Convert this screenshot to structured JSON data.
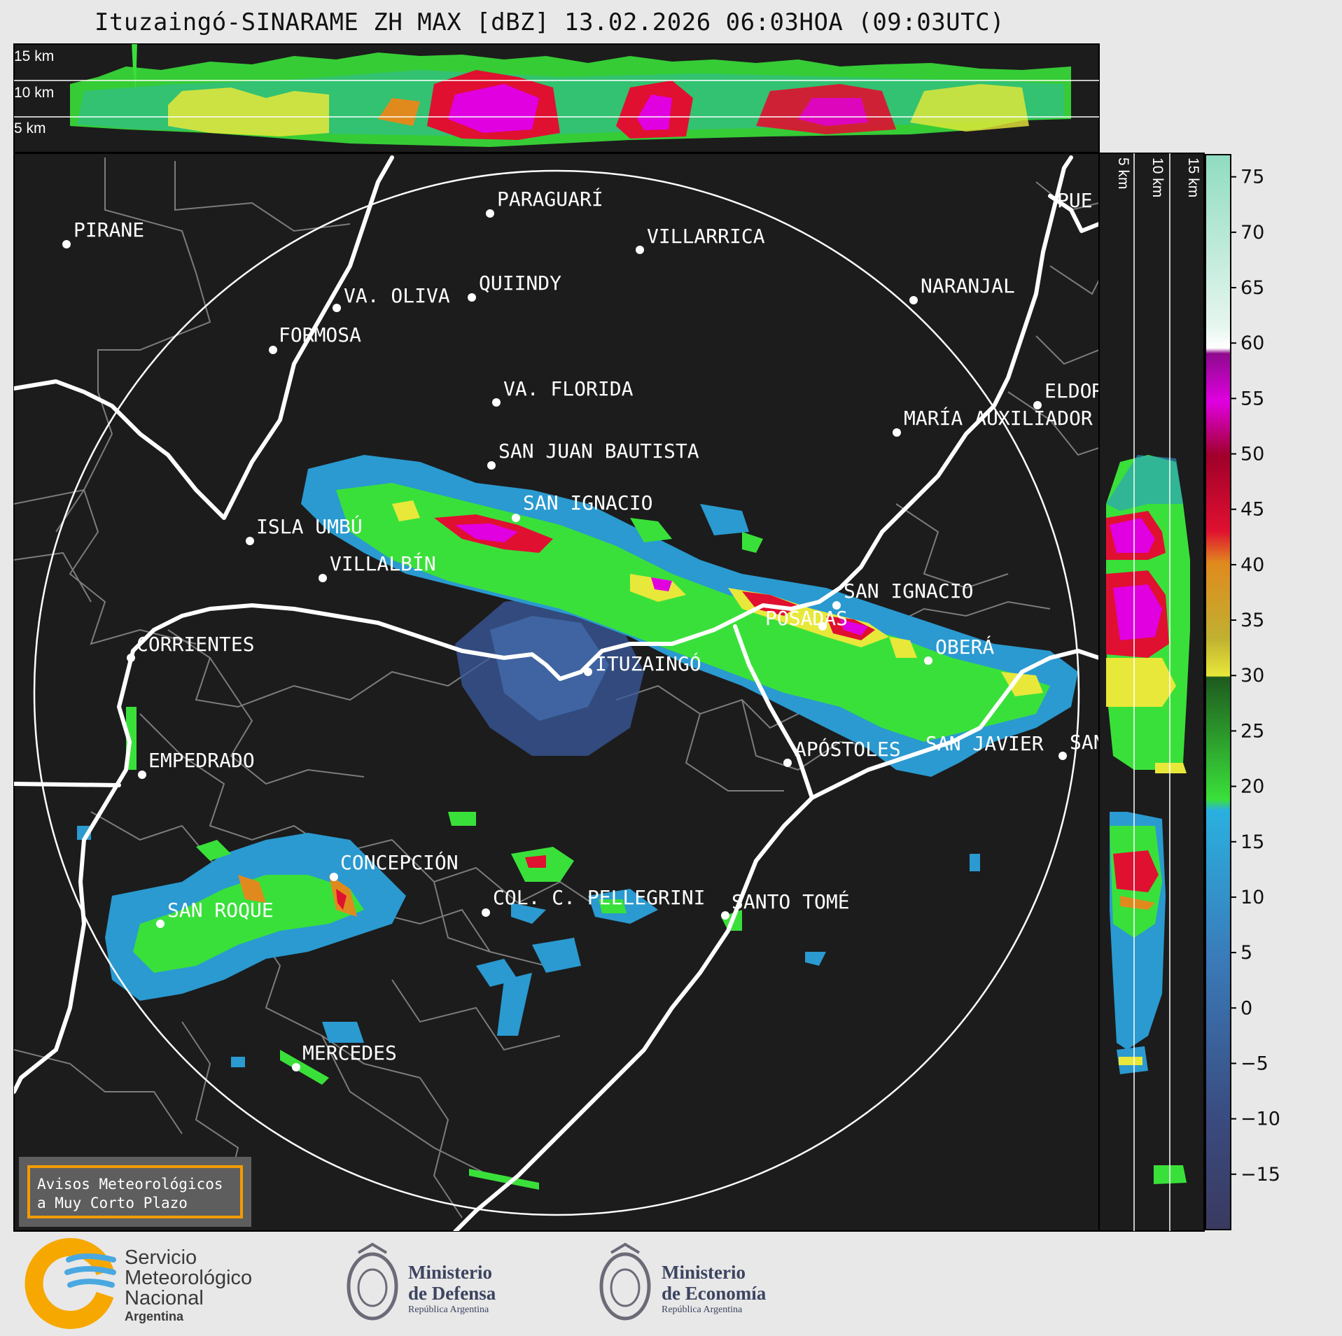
{
  "title": "Ituzaingó-SINARAME ZH MAX [dBZ] 13.02.2026 06:03HOA (09:03UTC)",
  "top_panel": {
    "height_labels": [
      "15 km",
      "10 km",
      "5 km"
    ]
  },
  "side_panel": {
    "height_labels": [
      "5 km",
      "10 km",
      "15 km"
    ]
  },
  "colorbar": {
    "unit": "dBZ",
    "ticks": [
      "75",
      "70",
      "65",
      "60",
      "55",
      "50",
      "45",
      "40",
      "35",
      "30",
      "25",
      "20",
      "15",
      "10",
      "5",
      "0",
      "−5",
      "−10",
      "−15"
    ],
    "range": [
      -20,
      77
    ],
    "colors": {
      "teal_high": "#8fdcc0",
      "white": "#ffffff",
      "purple": "#8e0a8e",
      "magenta": "#e000e0",
      "red_dark": "#9a0000",
      "red": "#e0102e",
      "orange": "#e08a1e",
      "yellow": "#e8e83a",
      "green_dark": "#1e6a1e",
      "green": "#3ae03a",
      "blue_light": "#2aa8d8",
      "blue": "#3a7ab8",
      "navy": "#3a3a6e"
    }
  },
  "cities": [
    {
      "name": "PIRANE"
    },
    {
      "name": "PARAGUARÍ"
    },
    {
      "name": "VILLARRICA"
    },
    {
      "name": "QUIINDY"
    },
    {
      "name": "VA. OLIVA"
    },
    {
      "name": "NARANJAL"
    },
    {
      "name": "FORMOSA"
    },
    {
      "name": "VA. FLORIDA"
    },
    {
      "name": "ELDOR"
    },
    {
      "name": "MARÍA AUXILIADOR"
    },
    {
      "name": "SAN JUAN BAUTISTA"
    },
    {
      "name": "SAN IGNACIO"
    },
    {
      "name": "ISLA UMBÚ"
    },
    {
      "name": "VILLALBÍN"
    },
    {
      "name": "SAN IGNACIO"
    },
    {
      "name": "POSADAS"
    },
    {
      "name": "CORRIENTES"
    },
    {
      "name": "ITUZAINGÓ"
    },
    {
      "name": "OBERÁ"
    },
    {
      "name": "EMPEDRADO"
    },
    {
      "name": "APÓSTOLES"
    },
    {
      "name": "SAN JAVIER"
    },
    {
      "name": "SAN"
    },
    {
      "name": "CONCEPCIÓN"
    },
    {
      "name": "COL. C. PELLEGRINI"
    },
    {
      "name": "SANTO TOMÉ"
    },
    {
      "name": "SAN ROQUE"
    },
    {
      "name": "MERCEDES"
    },
    {
      "name": "PUE"
    }
  ],
  "warning_box": {
    "line1": "Avisos Meteorológicos",
    "line2": "a Muy Corto Plazo"
  },
  "logos": {
    "smn": {
      "line1": "Servicio",
      "line2": "Meteorológico",
      "line3": "Nacional",
      "line4": "Argentina"
    },
    "defensa": {
      "line1": "Ministerio",
      "line2": "de Defensa",
      "line3": "República Argentina"
    },
    "economia": {
      "line1": "Ministerio",
      "line2": "de Economía",
      "line3": "República Argentina"
    }
  }
}
